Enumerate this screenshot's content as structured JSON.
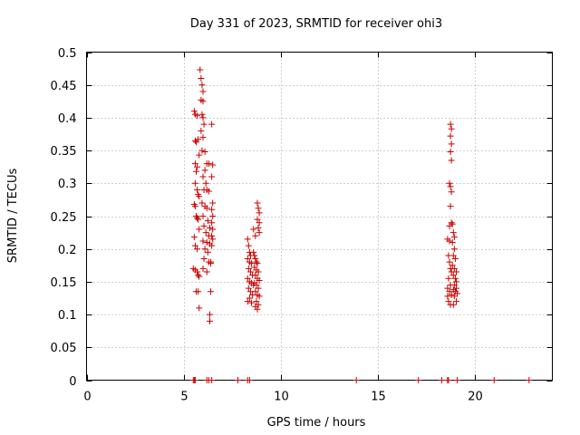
{
  "chart_data": {
    "type": "scatter",
    "title": "Day 331 of 2023, SRMTID for receiver ohi3",
    "xlabel": "GPS time / hours",
    "ylabel": "SRMTID / TECUs",
    "xlim": [
      0,
      24
    ],
    "ylim": [
      0,
      0.5
    ],
    "xticks": [
      0,
      5,
      10,
      15,
      20
    ],
    "xtick_labels": [
      "0",
      "5",
      "10",
      "15",
      "20"
    ],
    "yticks": [
      0,
      0.05,
      0.1,
      0.15,
      0.2,
      0.25,
      0.3,
      0.35,
      0.4,
      0.45,
      0.5
    ],
    "ytick_labels": [
      "0",
      "0.05",
      "0.1",
      "0.15",
      "0.2",
      "0.25",
      "0.3",
      "0.35",
      "0.4",
      "0.45",
      "0.5"
    ],
    "grid": true,
    "marker": "+",
    "color": "#cc0000",
    "series": [
      {
        "name": "SRMTID",
        "points": [
          [
            5.5,
            0.0
          ],
          [
            5.55,
            0.0
          ],
          [
            5.6,
            0.0
          ],
          [
            6.2,
            0.0
          ],
          [
            6.3,
            0.0
          ],
          [
            6.45,
            0.0
          ],
          [
            7.8,
            0.0
          ],
          [
            8.3,
            0.0
          ],
          [
            8.4,
            0.0
          ],
          [
            13.9,
            0.0
          ],
          [
            17.1,
            0.0
          ],
          [
            18.3,
            0.0
          ],
          [
            18.6,
            0.0
          ],
          [
            18.65,
            0.0
          ],
          [
            19.1,
            0.0
          ],
          [
            21.0,
            0.0
          ],
          [
            22.8,
            0.0
          ],
          [
            5.55,
            0.41
          ],
          [
            5.6,
            0.405
          ],
          [
            5.7,
            0.403
          ],
          [
            5.75,
            0.367
          ],
          [
            5.6,
            0.365
          ],
          [
            5.65,
            0.363
          ],
          [
            5.8,
            0.343
          ],
          [
            5.6,
            0.33
          ],
          [
            5.7,
            0.325
          ],
          [
            5.65,
            0.318
          ],
          [
            5.6,
            0.3
          ],
          [
            5.7,
            0.29
          ],
          [
            5.75,
            0.283
          ],
          [
            5.8,
            0.28
          ],
          [
            5.55,
            0.268
          ],
          [
            5.6,
            0.265
          ],
          [
            5.65,
            0.25
          ],
          [
            5.7,
            0.247
          ],
          [
            5.75,
            0.245
          ],
          [
            5.8,
            0.23
          ],
          [
            5.55,
            0.218
          ],
          [
            5.6,
            0.205
          ],
          [
            5.7,
            0.2
          ],
          [
            5.5,
            0.17
          ],
          [
            5.6,
            0.168
          ],
          [
            5.7,
            0.165
          ],
          [
            5.75,
            0.16
          ],
          [
            5.8,
            0.158
          ],
          [
            5.65,
            0.135
          ],
          [
            5.75,
            0.135
          ],
          [
            5.8,
            0.11
          ],
          [
            5.85,
            0.473
          ],
          [
            5.9,
            0.46
          ],
          [
            5.95,
            0.45
          ],
          [
            6.0,
            0.44
          ],
          [
            5.9,
            0.427
          ],
          [
            6.0,
            0.425
          ],
          [
            5.95,
            0.405
          ],
          [
            6.0,
            0.4
          ],
          [
            6.05,
            0.39
          ],
          [
            5.9,
            0.38
          ],
          [
            6.0,
            0.37
          ],
          [
            5.95,
            0.35
          ],
          [
            6.1,
            0.348
          ],
          [
            6.2,
            0.33
          ],
          [
            6.3,
            0.33
          ],
          [
            6.1,
            0.32
          ],
          [
            6.0,
            0.31
          ],
          [
            6.15,
            0.3
          ],
          [
            6.05,
            0.29
          ],
          [
            6.2,
            0.29
          ],
          [
            6.3,
            0.288
          ],
          [
            5.95,
            0.27
          ],
          [
            6.1,
            0.265
          ],
          [
            6.2,
            0.262
          ],
          [
            6.0,
            0.25
          ],
          [
            6.25,
            0.243
          ],
          [
            6.05,
            0.235
          ],
          [
            6.35,
            0.232
          ],
          [
            6.15,
            0.225
          ],
          [
            6.3,
            0.22
          ],
          [
            6.0,
            0.212
          ],
          [
            6.2,
            0.21
          ],
          [
            6.35,
            0.208
          ],
          [
            6.1,
            0.2
          ],
          [
            6.25,
            0.195
          ],
          [
            6.05,
            0.185
          ],
          [
            6.3,
            0.18
          ],
          [
            6.4,
            0.178
          ],
          [
            6.0,
            0.17
          ],
          [
            6.2,
            0.165
          ],
          [
            6.4,
            0.135
          ],
          [
            6.35,
            0.1
          ],
          [
            6.35,
            0.09
          ],
          [
            6.45,
            0.39
          ],
          [
            6.5,
            0.328
          ],
          [
            6.45,
            0.31
          ],
          [
            6.5,
            0.27
          ],
          [
            6.45,
            0.26
          ],
          [
            6.5,
            0.25
          ],
          [
            6.45,
            0.24
          ],
          [
            6.5,
            0.23
          ],
          [
            6.45,
            0.22
          ],
          [
            6.5,
            0.215
          ],
          [
            6.45,
            0.205
          ],
          [
            6.4,
            0.18
          ],
          [
            8.3,
            0.215
          ],
          [
            8.35,
            0.205
          ],
          [
            8.4,
            0.195
          ],
          [
            8.45,
            0.19
          ],
          [
            8.3,
            0.185
          ],
          [
            8.4,
            0.18
          ],
          [
            8.5,
            0.178
          ],
          [
            8.35,
            0.17
          ],
          [
            8.45,
            0.165
          ],
          [
            8.55,
            0.16
          ],
          [
            8.3,
            0.155
          ],
          [
            8.4,
            0.15
          ],
          [
            8.5,
            0.148
          ],
          [
            8.6,
            0.145
          ],
          [
            8.35,
            0.14
          ],
          [
            8.45,
            0.135
          ],
          [
            8.55,
            0.13
          ],
          [
            8.4,
            0.125
          ],
          [
            8.3,
            0.12
          ],
          [
            8.5,
            0.118
          ],
          [
            8.6,
            0.23
          ],
          [
            8.7,
            0.22
          ],
          [
            8.6,
            0.195
          ],
          [
            8.65,
            0.19
          ],
          [
            8.7,
            0.185
          ],
          [
            8.75,
            0.18
          ],
          [
            8.8,
            0.178
          ],
          [
            8.65,
            0.172
          ],
          [
            8.75,
            0.168
          ],
          [
            8.85,
            0.165
          ],
          [
            8.7,
            0.16
          ],
          [
            8.8,
            0.155
          ],
          [
            8.9,
            0.152
          ],
          [
            8.65,
            0.148
          ],
          [
            8.75,
            0.145
          ],
          [
            8.85,
            0.14
          ],
          [
            8.7,
            0.135
          ],
          [
            8.8,
            0.13
          ],
          [
            8.9,
            0.128
          ],
          [
            8.75,
            0.12
          ],
          [
            8.85,
            0.115
          ],
          [
            8.8,
            0.108
          ],
          [
            8.7,
            0.112
          ],
          [
            8.8,
            0.27
          ],
          [
            8.85,
            0.262
          ],
          [
            8.9,
            0.255
          ],
          [
            8.8,
            0.245
          ],
          [
            8.9,
            0.24
          ],
          [
            8.85,
            0.232
          ],
          [
            8.9,
            0.225
          ],
          [
            18.6,
            0.215
          ],
          [
            18.7,
            0.212
          ],
          [
            18.65,
            0.19
          ],
          [
            18.7,
            0.18
          ],
          [
            18.75,
            0.17
          ],
          [
            18.8,
            0.165
          ],
          [
            18.65,
            0.155
          ],
          [
            18.75,
            0.145
          ],
          [
            18.6,
            0.14
          ],
          [
            18.7,
            0.135
          ],
          [
            18.8,
            0.13
          ],
          [
            18.65,
            0.12
          ],
          [
            18.75,
            0.115
          ],
          [
            18.6,
            0.128
          ],
          [
            18.75,
            0.39
          ],
          [
            18.8,
            0.383
          ],
          [
            18.75,
            0.372
          ],
          [
            18.8,
            0.36
          ],
          [
            18.75,
            0.348
          ],
          [
            18.8,
            0.335
          ],
          [
            18.7,
            0.3
          ],
          [
            18.75,
            0.295
          ],
          [
            18.8,
            0.287
          ],
          [
            18.75,
            0.265
          ],
          [
            18.8,
            0.24
          ],
          [
            18.7,
            0.235
          ],
          [
            18.85,
            0.238
          ],
          [
            18.9,
            0.225
          ],
          [
            18.95,
            0.218
          ],
          [
            18.85,
            0.21
          ],
          [
            18.95,
            0.2
          ],
          [
            18.9,
            0.19
          ],
          [
            19.0,
            0.185
          ],
          [
            18.85,
            0.175
          ],
          [
            18.95,
            0.17
          ],
          [
            19.05,
            0.165
          ],
          [
            18.9,
            0.16
          ],
          [
            19.0,
            0.155
          ],
          [
            19.05,
            0.15
          ],
          [
            18.95,
            0.145
          ],
          [
            19.05,
            0.14
          ],
          [
            18.9,
            0.138
          ],
          [
            19.0,
            0.135
          ],
          [
            19.1,
            0.132
          ],
          [
            18.95,
            0.128
          ],
          [
            19.05,
            0.12
          ],
          [
            18.9,
            0.115
          ]
        ]
      }
    ]
  }
}
